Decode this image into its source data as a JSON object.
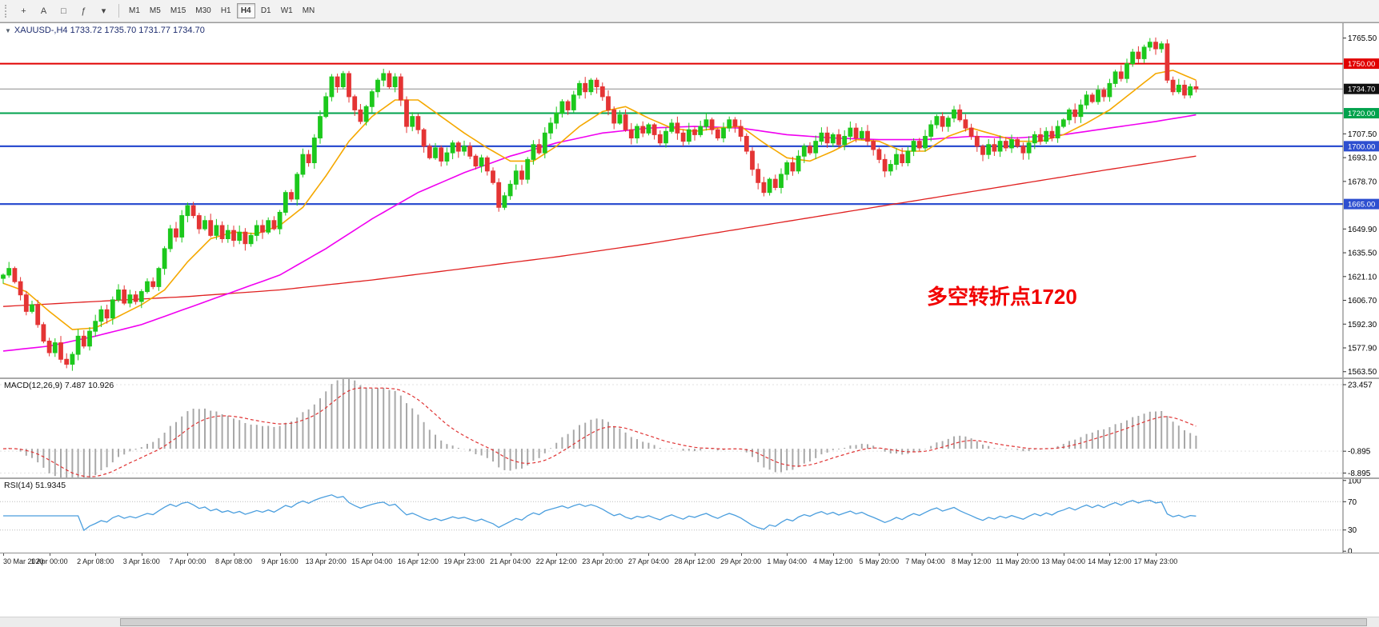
{
  "toolbar": {
    "tool_icons": [
      {
        "name": "crosshair-icon",
        "glyph": "+"
      },
      {
        "name": "text-tool-icon",
        "glyph": "A"
      },
      {
        "name": "shapes-icon",
        "glyph": "□"
      },
      {
        "name": "indicators-icon",
        "glyph": "ƒ"
      },
      {
        "name": "indicator-dropdown-icon",
        "glyph": "▾"
      }
    ],
    "timeframes": [
      "M1",
      "M5",
      "M15",
      "M30",
      "H1",
      "H4",
      "D1",
      "W1",
      "MN"
    ],
    "active_timeframe": "H4"
  },
  "main_chart": {
    "dropdown_glyph": "▼",
    "symbol_ohlc_line": "XAUUSD-,H4  1733.72 1735.70 1731.77 1734.70",
    "annotation": {
      "text": "多空转折点1720",
      "color": "#f20000"
    },
    "axis_ticks": [
      "1765.50",
      "1707.50",
      "1693.10",
      "1678.70",
      "1649.90",
      "1635.50",
      "1621.10",
      "1606.70",
      "1592.30",
      "1577.90",
      "1563.50"
    ],
    "levels": [
      {
        "price": 1750.0,
        "label": "1750.00",
        "color": "#e10000",
        "width": 2
      },
      {
        "price": 1720.0,
        "label": "1720.00",
        "color": "#00a24d",
        "width": 2
      },
      {
        "price": 1700.0,
        "label": "1700.00",
        "color": "#2e4fd0",
        "width": 2.2
      },
      {
        "price": 1665.0,
        "label": "1665.00",
        "color": "#2e4fd0",
        "width": 2.2
      }
    ],
    "current_price": {
      "value": 1734.7,
      "label": "1734.70",
      "line_color": "#8c8c8c",
      "box_color": "#111111"
    },
    "price_min": 1559.5,
    "price_max": 1774.5
  },
  "macd_panel": {
    "label": "MACD(12,26,9) 7.487 10.926",
    "ticks": [
      {
        "value": 23.457,
        "label": "23.457"
      },
      {
        "value": -0.895,
        "label": "-0.895"
      },
      {
        "value": -8.895,
        "label": "-8.895"
      }
    ],
    "range": {
      "min": -10.5,
      "max": 25.5
    },
    "histogram_color": "#a8a8a8",
    "signal_color": "#e03434"
  },
  "rsi_panel": {
    "label": "RSI(14) 51.9345",
    "ticks": [
      {
        "value": 100,
        "label": "100"
      },
      {
        "value": 70,
        "label": "70"
      },
      {
        "value": 30,
        "label": "30"
      },
      {
        "value": 0,
        "label": "0"
      }
    ],
    "level_lines": [
      70,
      30
    ],
    "line_color": "#4a9ede",
    "range": {
      "min": -2,
      "max": 102
    }
  },
  "time_axis": {
    "labels": [
      "30 Mar 2020",
      "1 Apr 00:00",
      "2 Apr 08:00",
      "3 Apr 16:00",
      "7 Apr 00:00",
      "8 Apr 08:00",
      "9 Apr 16:00",
      "13 Apr 20:00",
      "15 Apr 04:00",
      "16 Apr 12:00",
      "19 Apr 23:00",
      "21 Apr 04:00",
      "22 Apr 12:00",
      "23 Apr 20:00",
      "27 Apr 04:00",
      "28 Apr 12:00",
      "29 Apr 20:00",
      "1 May 04:00",
      "4 May 12:00",
      "5 May 20:00",
      "7 May 04:00",
      "8 May 12:00",
      "11 May 20:00",
      "13 May 04:00",
      "14 May 12:00",
      "17 May 23:00"
    ],
    "candles_per_label": 8
  },
  "colors": {
    "bull": "#1cc81c",
    "bear": "#e43434",
    "axis_text": "#000000",
    "axis_border": "#6e6e6e"
  },
  "chart_data": {
    "type": "candlestick",
    "symbol": "XAUUSD-",
    "timeframe": "H4",
    "ohlc_display": {
      "open": "1733.72",
      "high": "1735.70",
      "low": "1731.77",
      "close": "1734.70"
    },
    "first_open": 1620,
    "closes": [
      1622,
      1626,
      1618,
      1610,
      1600,
      1604,
      1592,
      1582,
      1575,
      1581,
      1571,
      1568,
      1574,
      1585,
      1579,
      1588,
      1594,
      1601,
      1596,
      1607,
      1613,
      1605,
      1610,
      1606,
      1612,
      1618,
      1615,
      1626,
      1638,
      1650,
      1645,
      1658,
      1664,
      1658,
      1650,
      1655,
      1646,
      1652,
      1644,
      1649,
      1643,
      1648,
      1641,
      1646,
      1652,
      1648,
      1655,
      1650,
      1660,
      1672,
      1668,
      1683,
      1695,
      1690,
      1705,
      1718,
      1730,
      1742,
      1736,
      1744,
      1730,
      1722,
      1715,
      1724,
      1733,
      1740,
      1744,
      1736,
      1742,
      1728,
      1712,
      1718,
      1710,
      1700,
      1693,
      1699,
      1691,
      1696,
      1702,
      1697,
      1700,
      1694,
      1688,
      1693,
      1685,
      1678,
      1663,
      1670,
      1677,
      1685,
      1680,
      1692,
      1701,
      1696,
      1708,
      1714,
      1720,
      1727,
      1722,
      1731,
      1738,
      1733,
      1740,
      1736,
      1730,
      1722,
      1714,
      1719,
      1710,
      1705,
      1712,
      1708,
      1713,
      1707,
      1702,
      1709,
      1714,
      1708,
      1703,
      1710,
      1707,
      1712,
      1716,
      1710,
      1705,
      1711,
      1716,
      1712,
      1706,
      1697,
      1686,
      1678,
      1672,
      1680,
      1675,
      1683,
      1690,
      1685,
      1694,
      1700,
      1696,
      1703,
      1708,
      1702,
      1707,
      1701,
      1706,
      1711,
      1705,
      1709,
      1703,
      1698,
      1692,
      1685,
      1689,
      1695,
      1690,
      1697,
      1703,
      1699,
      1706,
      1713,
      1718,
      1712,
      1717,
      1722,
      1716,
      1711,
      1706,
      1700,
      1695,
      1701,
      1697,
      1703,
      1699,
      1704,
      1700,
      1696,
      1702,
      1707,
      1703,
      1709,
      1705,
      1712,
      1716,
      1722,
      1718,
      1725,
      1731,
      1727,
      1734,
      1730,
      1738,
      1745,
      1741,
      1750,
      1757,
      1753,
      1760,
      1763,
      1759,
      1762,
      1740,
      1733,
      1737,
      1731,
      1736,
      1734.7
    ],
    "ma_fast_color": "#f5a800",
    "ma_mid_color": "#f000f0",
    "ma_slow_color": "#e02020",
    "ma_fast": [
      [
        0,
        1617
      ],
      [
        4,
        1612
      ],
      [
        8,
        1600
      ],
      [
        12,
        1589
      ],
      [
        16,
        1590
      ],
      [
        20,
        1597
      ],
      [
        24,
        1604
      ],
      [
        28,
        1613
      ],
      [
        32,
        1630
      ],
      [
        36,
        1644
      ],
      [
        40,
        1648
      ],
      [
        44,
        1647
      ],
      [
        48,
        1652
      ],
      [
        52,
        1663
      ],
      [
        56,
        1682
      ],
      [
        60,
        1703
      ],
      [
        64,
        1718
      ],
      [
        68,
        1728
      ],
      [
        72,
        1728
      ],
      [
        76,
        1718
      ],
      [
        80,
        1708
      ],
      [
        84,
        1699
      ],
      [
        88,
        1691
      ],
      [
        92,
        1691
      ],
      [
        96,
        1700
      ],
      [
        100,
        1712
      ],
      [
        104,
        1721
      ],
      [
        108,
        1724
      ],
      [
        112,
        1717
      ],
      [
        116,
        1711
      ],
      [
        120,
        1709
      ],
      [
        124,
        1711
      ],
      [
        128,
        1712
      ],
      [
        132,
        1702
      ],
      [
        136,
        1693
      ],
      [
        140,
        1691
      ],
      [
        144,
        1697
      ],
      [
        148,
        1704
      ],
      [
        152,
        1703
      ],
      [
        156,
        1697
      ],
      [
        160,
        1697
      ],
      [
        164,
        1706
      ],
      [
        168,
        1711
      ],
      [
        172,
        1707
      ],
      [
        176,
        1703
      ],
      [
        180,
        1703
      ],
      [
        184,
        1707
      ],
      [
        188,
        1714
      ],
      [
        192,
        1722
      ],
      [
        196,
        1733
      ],
      [
        200,
        1744
      ],
      [
        203,
        1746
      ],
      [
        207,
        1740
      ]
    ],
    "ma_mid": [
      [
        0,
        1576
      ],
      [
        8,
        1579
      ],
      [
        16,
        1585
      ],
      [
        24,
        1592
      ],
      [
        32,
        1602
      ],
      [
        40,
        1612
      ],
      [
        48,
        1622
      ],
      [
        56,
        1638
      ],
      [
        64,
        1656
      ],
      [
        72,
        1672
      ],
      [
        80,
        1684
      ],
      [
        88,
        1694
      ],
      [
        96,
        1702
      ],
      [
        104,
        1708
      ],
      [
        112,
        1711
      ],
      [
        120,
        1712
      ],
      [
        128,
        1711
      ],
      [
        136,
        1707
      ],
      [
        144,
        1705
      ],
      [
        152,
        1704
      ],
      [
        160,
        1704
      ],
      [
        168,
        1706
      ],
      [
        176,
        1705
      ],
      [
        184,
        1707
      ],
      [
        192,
        1711
      ],
      [
        200,
        1715
      ],
      [
        207,
        1719
      ]
    ],
    "ma_slow": [
      [
        0,
        1603
      ],
      [
        16,
        1606
      ],
      [
        32,
        1609
      ],
      [
        48,
        1613
      ],
      [
        64,
        1619
      ],
      [
        80,
        1626
      ],
      [
        96,
        1633
      ],
      [
        112,
        1641
      ],
      [
        128,
        1650
      ],
      [
        144,
        1659
      ],
      [
        160,
        1668
      ],
      [
        176,
        1677
      ],
      [
        192,
        1686
      ],
      [
        207,
        1694
      ]
    ],
    "indicators": {
      "macd": {
        "fast": 12,
        "slow": 26,
        "signal": 9,
        "current_main": 7.487,
        "current_signal": 10.926
      },
      "rsi": {
        "period": 14,
        "current": 51.9345
      }
    }
  }
}
